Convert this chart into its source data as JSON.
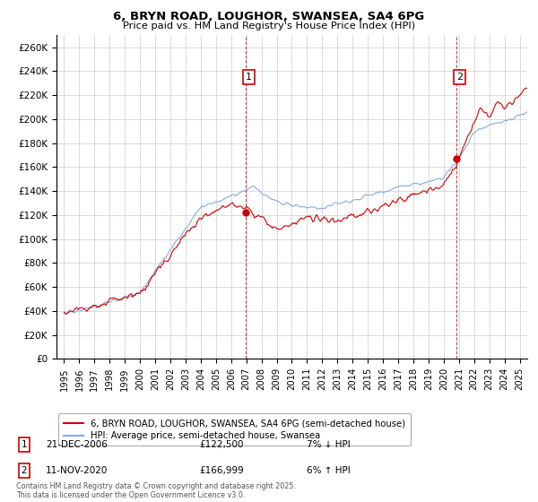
{
  "title_line1": "6, BRYN ROAD, LOUGHOR, SWANSEA, SA4 6PG",
  "title_line2": "Price paid vs. HM Land Registry's House Price Index (HPI)",
  "ylabel_ticks": [
    "£0",
    "£20K",
    "£40K",
    "£60K",
    "£80K",
    "£100K",
    "£120K",
    "£140K",
    "£160K",
    "£180K",
    "£200K",
    "£220K",
    "£240K",
    "£260K"
  ],
  "ytick_values": [
    0,
    20000,
    40000,
    60000,
    80000,
    100000,
    120000,
    140000,
    160000,
    180000,
    200000,
    220000,
    240000,
    260000
  ],
  "ylim": [
    0,
    270000
  ],
  "xlim_start": 1994.5,
  "xlim_end": 2025.5,
  "property_color": "#cc0000",
  "hpi_color": "#88aadd",
  "transaction1_price": 122500,
  "transaction1_year": 2006.97,
  "transaction2_price": 166999,
  "transaction2_year": 2020.86,
  "legend_property": "6, BRYN ROAD, LOUGHOR, SWANSEA, SA4 6PG (semi-detached house)",
  "legend_hpi": "HPI: Average price, semi-detached house, Swansea",
  "table_row1": [
    "1",
    "21-DEC-2006",
    "£122,500",
    "7% ↓ HPI"
  ],
  "table_row2": [
    "2",
    "11-NOV-2020",
    "£166,999",
    "6% ↑ HPI"
  ],
  "footer": "Contains HM Land Registry data © Crown copyright and database right 2025.\nThis data is licensed under the Open Government Licence v3.0.",
  "background_color": "#ffffff",
  "grid_color": "#cccccc"
}
